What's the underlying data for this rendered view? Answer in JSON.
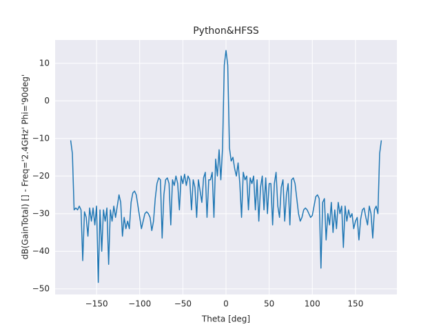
{
  "chart_data": {
    "type": "line",
    "title": "Python&HFSS",
    "xlabel": "Theta [deg]",
    "ylabel": "dB(GainTotal) [] - Freq='2.4GHz' Phi='90deg'",
    "x": [
      -180,
      -178,
      -176,
      -174,
      -172,
      -170,
      -168,
      -166,
      -164,
      -162,
      -160,
      -158,
      -156,
      -154,
      -152,
      -150,
      -148,
      -146,
      -144,
      -142,
      -140,
      -138,
      -136,
      -134,
      -132,
      -130,
      -128,
      -126,
      -124,
      -122,
      -120,
      -118,
      -116,
      -114,
      -112,
      -110,
      -108,
      -106,
      -104,
      -102,
      -100,
      -98,
      -96,
      -94,
      -92,
      -90,
      -88,
      -86,
      -84,
      -82,
      -80,
      -78,
      -76,
      -74,
      -72,
      -70,
      -68,
      -66,
      -64,
      -62,
      -60,
      -58,
      -56,
      -54,
      -52,
      -50,
      -48,
      -46,
      -44,
      -42,
      -40,
      -38,
      -36,
      -34,
      -32,
      -30,
      -28,
      -26,
      -24,
      -22,
      -20,
      -18,
      -16,
      -14,
      -12,
      -10,
      -8,
      -6,
      -4,
      -2,
      0,
      2,
      4,
      6,
      8,
      10,
      12,
      14,
      16,
      18,
      20,
      22,
      24,
      26,
      28,
      30,
      32,
      34,
      36,
      38,
      40,
      42,
      44,
      46,
      48,
      50,
      52,
      54,
      56,
      58,
      60,
      62,
      64,
      66,
      68,
      70,
      72,
      74,
      76,
      78,
      80,
      82,
      84,
      86,
      88,
      90,
      92,
      94,
      96,
      98,
      100,
      102,
      104,
      106,
      108,
      110,
      112,
      114,
      116,
      118,
      120,
      122,
      124,
      126,
      128,
      130,
      132,
      134,
      136,
      138,
      140,
      142,
      144,
      146,
      148,
      150,
      152,
      154,
      156,
      158,
      160,
      162,
      164,
      166,
      168,
      170,
      172,
      174,
      176,
      178,
      180
    ],
    "series": [
      {
        "name": "dB(GainTotal)",
        "color": "#1f77b4",
        "values": [
          -10.5,
          -14,
          -29,
          -28.5,
          -29,
          -28,
          -29,
          -42.5,
          -29.5,
          -31,
          -36,
          -28.5,
          -32,
          -28.5,
          -33,
          -28,
          -48.3,
          -29,
          -40,
          -29,
          -32,
          -28.5,
          -43.5,
          -29,
          -32,
          -28,
          -31,
          -28,
          -25,
          -27,
          -36,
          -31,
          -34,
          -32,
          -34,
          -27,
          -24.5,
          -24,
          -25,
          -28,
          -31,
          -34,
          -32,
          -30,
          -29.5,
          -30,
          -31,
          -34.5,
          -32,
          -26,
          -22,
          -20.5,
          -21,
          -36.5,
          -25,
          -21,
          -20.5,
          -22,
          -33,
          -21,
          -22.5,
          -20,
          -22,
          -29,
          -20,
          -22,
          -19.5,
          -22.5,
          -20,
          -21,
          -29,
          -21,
          -23,
          -31,
          -21,
          -24,
          -27,
          -20.5,
          -19,
          -31,
          -21,
          -21,
          -19,
          -31,
          -15.5,
          -20,
          -13,
          -21,
          -12.5,
          9.5,
          13.4,
          9.5,
          -12.5,
          -16,
          -15,
          -18,
          -20,
          -16.5,
          -22,
          -31,
          -19,
          -21,
          -20,
          -29,
          -20.5,
          -22,
          -20,
          -29,
          -21,
          -32,
          -23,
          -20,
          -29,
          -20.5,
          -30,
          -22,
          -22,
          -33,
          -22,
          -19,
          -28,
          -31,
          -23,
          -21,
          -32,
          -25,
          -22,
          -33,
          -21,
          -20.5,
          -22,
          -26,
          -30,
          -32,
          -31,
          -29,
          -28.5,
          -29,
          -30,
          -31,
          -30.5,
          -28,
          -25.5,
          -25,
          -26,
          -44.5,
          -27,
          -26,
          -37,
          -30,
          -33,
          -27,
          -35,
          -29,
          -34,
          -27,
          -30,
          -28,
          -39,
          -28,
          -32,
          -29,
          -31,
          -30,
          -34,
          -32,
          -31,
          -37,
          -31.5,
          -29,
          -28.5,
          -31,
          -33,
          -28,
          -30,
          -36.5,
          -29,
          -28,
          -30,
          -14,
          -10.5
        ]
      }
    ],
    "xlim": [
      -198,
      198
    ],
    "ylim": [
      -51.5,
      16.2
    ],
    "xticks": [
      {
        "value": -150,
        "label": "−150"
      },
      {
        "value": -100,
        "label": "−100"
      },
      {
        "value": -50,
        "label": "−50"
      },
      0,
      50,
      100,
      150
    ],
    "yticks": [
      {
        "value": -50,
        "label": "−50"
      },
      {
        "value": -40,
        "label": "−40"
      },
      {
        "value": -30,
        "label": "−30"
      },
      {
        "value": -20,
        "label": "−20"
      },
      {
        "value": -10,
        "label": "−10"
      },
      0,
      10
    ],
    "grid": true
  }
}
